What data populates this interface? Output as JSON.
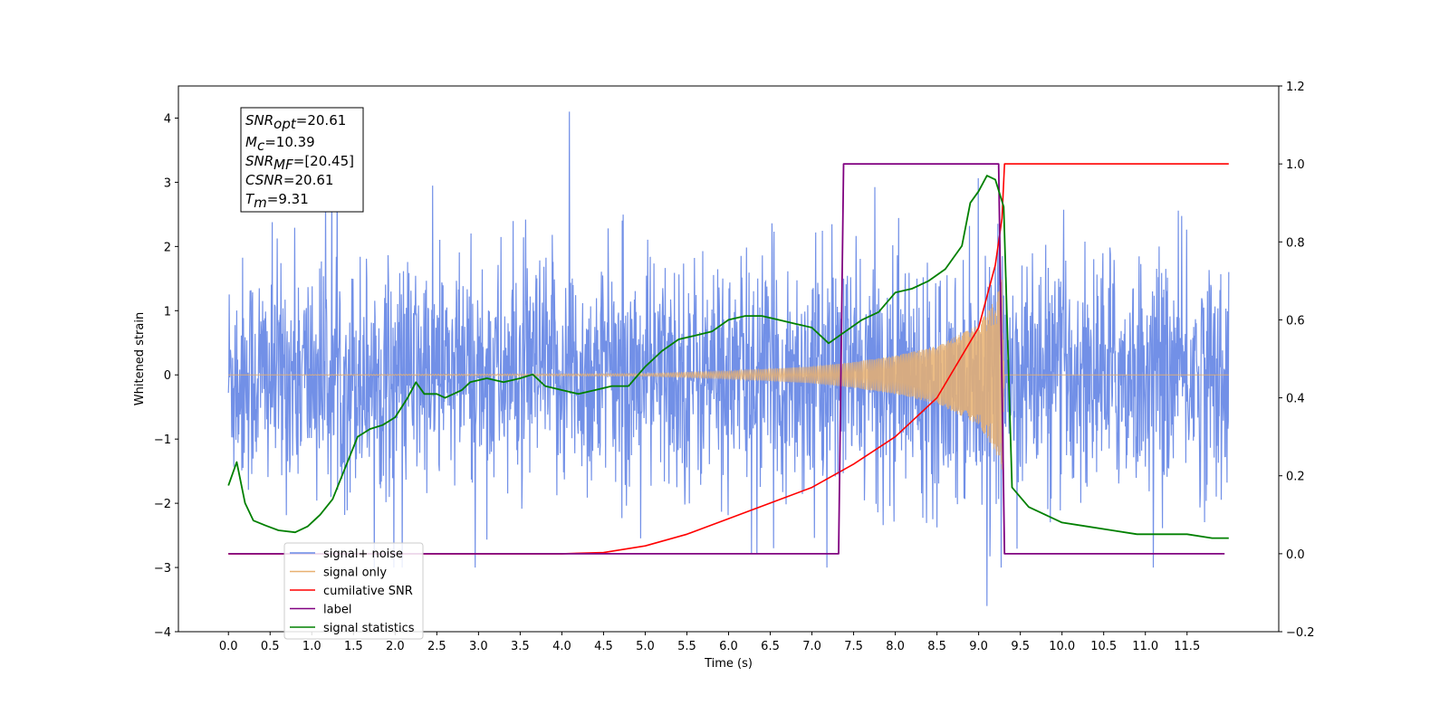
{
  "chart_data": {
    "type": "line",
    "xlabel": "Time (s)",
    "ylabel": "Whitened strain",
    "xlim": [
      -0.6,
      12.6
    ],
    "ylim": [
      -4,
      4.5
    ],
    "y2lim": [
      -0.2,
      1.2
    ],
    "x_ticks": [
      0.0,
      0.5,
      1.0,
      1.5,
      2.0,
      2.5,
      3.0,
      3.5,
      4.0,
      4.5,
      5.0,
      5.5,
      6.0,
      6.5,
      7.0,
      7.5,
      8.0,
      8.5,
      9.0,
      9.5,
      10.0,
      10.5,
      11.0,
      11.5
    ],
    "x_tick_labels": [
      "0.0",
      "0.5",
      "1.0",
      "1.5",
      "2.0",
      "2.5",
      "3.0",
      "3.5",
      "4.0",
      "4.5",
      "5.0",
      "5.5",
      "6.0",
      "6.5",
      "7.0",
      "7.5",
      "8.0",
      "8.5",
      "9.0",
      "9.5",
      "10.0",
      "10.5",
      "11.0",
      "11.5"
    ],
    "y_ticks": [
      -4,
      -3,
      -2,
      -1,
      0,
      1,
      2,
      3,
      4
    ],
    "y_tick_labels": [
      "−4",
      "−3",
      "−2",
      "−1",
      "0",
      "1",
      "2",
      "3",
      "4"
    ],
    "y2_ticks": [
      -0.2,
      0.0,
      0.2,
      0.4,
      0.6,
      0.8,
      1.0,
      1.2
    ],
    "y2_tick_labels": [
      "−0.2",
      "0.0",
      "0.2",
      "0.4",
      "0.6",
      "0.8",
      "1.0",
      "1.2"
    ],
    "grid": false,
    "legend_placement": "lower-left",
    "annotation": {
      "snr_opt": {
        "base": "SNR",
        "sub": "opt",
        "value": "=20.61"
      },
      "mc": {
        "base": "M",
        "sub": "c",
        "value": "=10.39"
      },
      "snr_mf": {
        "base": "SNR",
        "sub": "MF",
        "value": "=[20.45]"
      },
      "csnr": {
        "base": "CSNR",
        "value": "=20.61"
      },
      "tm": {
        "base": "T",
        "sub": "m",
        "value": "=9.31"
      }
    },
    "series": [
      {
        "name": "signal+ noise",
        "axis": "left",
        "color": "#6a8ae6",
        "x_range": [
          0.0,
          12.0
        ],
        "approx_bounds": [
          -3.6,
          4.1
        ],
        "typical_std": 0.9,
        "note_peaks": [
          {
            "x": 4.09,
            "y": 4.1
          },
          {
            "x": 9.1,
            "y": -3.6
          },
          {
            "x": 9.25,
            "y": 2.2
          }
        ]
      },
      {
        "name": "signal only",
        "axis": "left",
        "color": "#e8b070",
        "x_range": [
          0.0,
          12.0
        ],
        "envelope": {
          "x": [
            0.0,
            5.0,
            6.0,
            7.0,
            7.5,
            8.0,
            8.5,
            9.0,
            9.2,
            9.28,
            9.31
          ],
          "amp": [
            0.0,
            0.02,
            0.06,
            0.13,
            0.2,
            0.3,
            0.45,
            0.78,
            1.2,
            1.5,
            0.0
          ]
        }
      },
      {
        "name": "cumilative SNR",
        "axis": "right",
        "color": "#ff0000",
        "x": [
          0.0,
          4.0,
          4.5,
          5.0,
          5.5,
          6.0,
          6.5,
          7.0,
          7.5,
          8.0,
          8.5,
          9.0,
          9.2,
          9.28,
          9.31,
          12.0
        ],
        "y": [
          0.0,
          0.0,
          0.003,
          0.02,
          0.05,
          0.09,
          0.13,
          0.17,
          0.23,
          0.3,
          0.4,
          0.58,
          0.74,
          0.86,
          1.0,
          1.0
        ]
      },
      {
        "name": "label",
        "axis": "right",
        "color": "#800080",
        "x": [
          0.0,
          7.32,
          7.38,
          9.24,
          9.31,
          11.95
        ],
        "y": [
          0.0,
          0.0,
          1.0,
          1.0,
          0.0,
          0.0
        ]
      },
      {
        "name": "signal statistics",
        "axis": "right",
        "color": "#008000",
        "x": [
          0.0,
          0.1,
          0.2,
          0.3,
          0.45,
          0.6,
          0.8,
          0.95,
          1.1,
          1.25,
          1.4,
          1.55,
          1.7,
          1.85,
          2.0,
          2.15,
          2.25,
          2.35,
          2.5,
          2.6,
          2.8,
          2.9,
          3.1,
          3.3,
          3.5,
          3.65,
          3.8,
          4.0,
          4.2,
          4.4,
          4.6,
          4.8,
          5.0,
          5.2,
          5.4,
          5.6,
          5.8,
          6.0,
          6.2,
          6.4,
          6.6,
          6.8,
          7.0,
          7.2,
          7.4,
          7.6,
          7.8,
          8.0,
          8.2,
          8.4,
          8.6,
          8.8,
          8.9,
          9.0,
          9.1,
          9.2,
          9.3,
          9.4,
          9.6,
          9.8,
          10.0,
          10.3,
          10.6,
          10.9,
          11.2,
          11.5,
          11.8,
          12.0
        ],
        "y": [
          0.175,
          0.235,
          0.13,
          0.085,
          0.072,
          0.06,
          0.055,
          0.07,
          0.1,
          0.14,
          0.22,
          0.3,
          0.32,
          0.33,
          0.35,
          0.4,
          0.44,
          0.41,
          0.41,
          0.4,
          0.42,
          0.44,
          0.45,
          0.44,
          0.45,
          0.46,
          0.43,
          0.42,
          0.41,
          0.42,
          0.43,
          0.43,
          0.48,
          0.52,
          0.55,
          0.56,
          0.57,
          0.6,
          0.61,
          0.61,
          0.6,
          0.59,
          0.58,
          0.54,
          0.57,
          0.6,
          0.62,
          0.67,
          0.68,
          0.7,
          0.73,
          0.79,
          0.9,
          0.93,
          0.97,
          0.96,
          0.89,
          0.17,
          0.12,
          0.1,
          0.08,
          0.07,
          0.06,
          0.05,
          0.05,
          0.05,
          0.04,
          0.04
        ]
      }
    ]
  }
}
